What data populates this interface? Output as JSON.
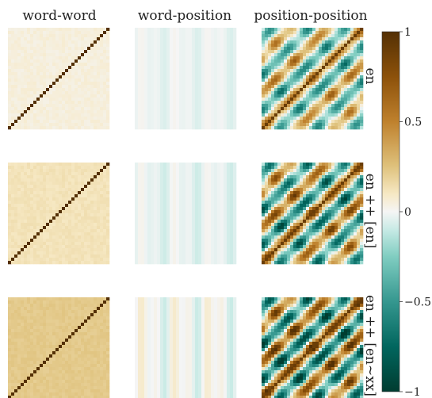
{
  "chart_data": {
    "type": "heatmap",
    "column_titles": [
      "word-word",
      "word-position",
      "position-position"
    ],
    "row_labels": [
      "en",
      "en ++ [en]",
      "en ++ [en~xx]"
    ],
    "colorbar": {
      "vmin": -1,
      "vmax": 1,
      "ticks": [
        1,
        0.5,
        0,
        -0.5,
        -1
      ],
      "tick_labels": [
        "1",
        "0.5",
        "0",
        "−0.5",
        "−1"
      ],
      "colors": {
        "max": "#543005",
        "mid": "#f5f5f5",
        "min": "#003c30"
      }
    },
    "matrix_size": 32,
    "panels": [
      {
        "row": "en",
        "column": "word-word",
        "description_values": {
          "diagonal": 1.0,
          "off_diagonal_mean": 0.05
        }
      },
      {
        "row": "en",
        "column": "word-position",
        "description_values": {
          "mean": -0.02,
          "stripe_amplitude": 0.04
        }
      },
      {
        "row": "en",
        "column": "position-position",
        "description_values": {
          "diagonal": 0.9,
          "band_amplitude": 0.6
        }
      },
      {
        "row": "en ++ [en]",
        "column": "word-word",
        "description_values": {
          "diagonal": 1.0,
          "off_diagonal_mean": 0.12
        }
      },
      {
        "row": "en ++ [en]",
        "column": "word-position",
        "description_values": {
          "mean": -0.03,
          "stripe_amplitude": 0.06
        }
      },
      {
        "row": "en ++ [en]",
        "column": "position-position",
        "description_values": {
          "diagonal": 0.9,
          "band_amplitude": 0.8
        }
      },
      {
        "row": "en ++ [en~xx]",
        "column": "word-word",
        "description_values": {
          "diagonal": 1.0,
          "off_diagonal_mean": 0.22
        }
      },
      {
        "row": "en ++ [en~xx]",
        "column": "word-position",
        "description_values": {
          "mean": 0.0,
          "stripe_amplitude": 0.1
        }
      },
      {
        "row": "en ++ [en~xx]",
        "column": "position-position",
        "description_values": {
          "diagonal": 0.9,
          "band_amplitude": 0.95
        }
      }
    ]
  }
}
